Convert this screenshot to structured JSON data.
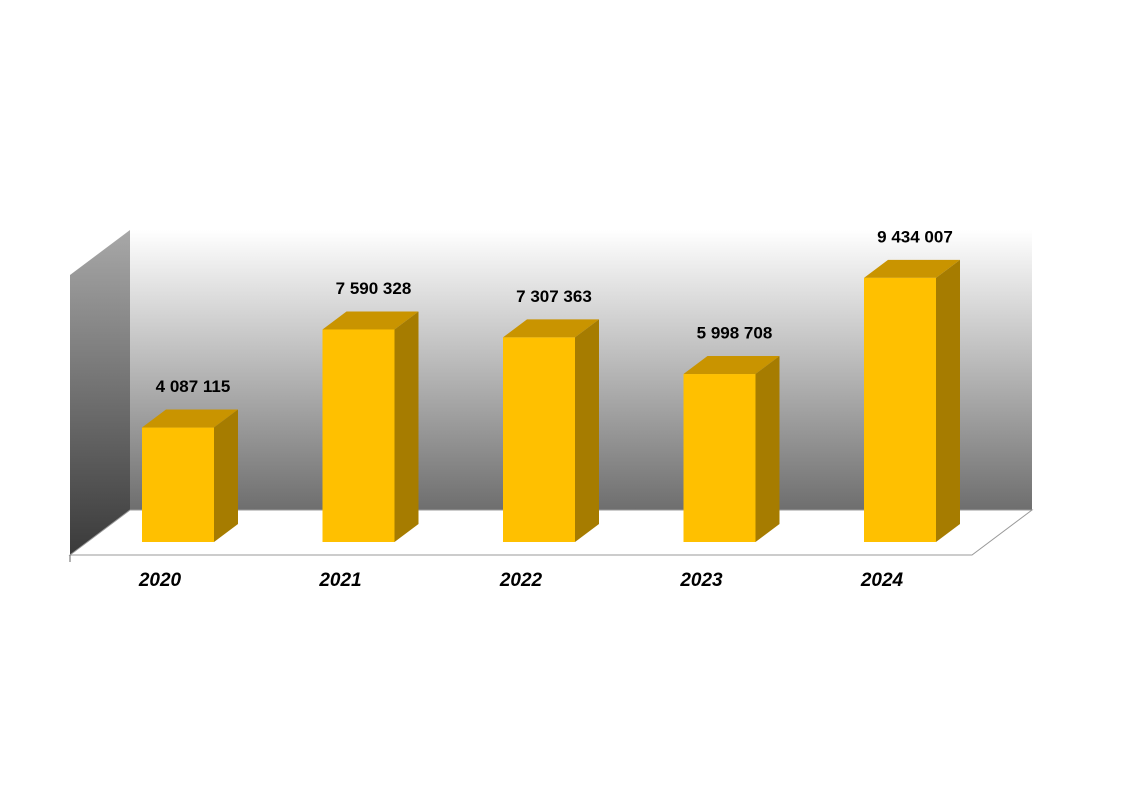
{
  "chart_data": {
    "type": "bar3d",
    "categories": [
      "2020",
      "2021",
      "2022",
      "2023",
      "2024"
    ],
    "values": [
      4087115,
      7590328,
      7307363,
      5998708,
      9434007
    ],
    "value_labels": [
      "4 087 115",
      "7 590 328",
      "7 307 363",
      "5 998 708",
      "9 434 007"
    ],
    "color": "#FFC000",
    "ylim": [
      0,
      10000000
    ]
  }
}
